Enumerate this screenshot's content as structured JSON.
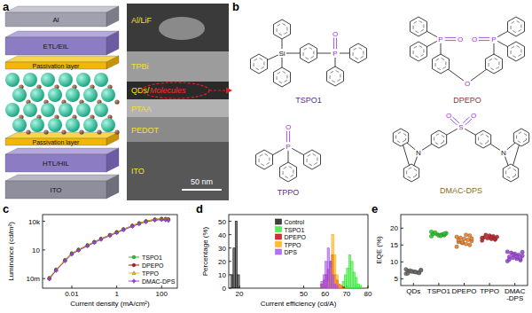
{
  "panel_labels": [
    "a",
    "b",
    "c",
    "d",
    "e"
  ],
  "device_layers": [
    "Al",
    "ETL/EIL",
    "Passivation layer",
    "Passivation layer",
    "HTL/HIL",
    "ITO"
  ],
  "tem": {
    "labels": [
      "Al/LiF",
      "TPBi",
      "QDs/",
      "PTAA",
      "PEDOT",
      "ITO"
    ],
    "highlight": "Molecules",
    "scale_bar": "50 nm"
  },
  "molecules": [
    {
      "name": "TSPO1",
      "atoms": [
        "Si",
        "P",
        "O"
      ]
    },
    {
      "name": "DPEPO",
      "atoms": [
        "P",
        "O",
        "P",
        "O",
        "O"
      ]
    },
    {
      "name": "TPPO",
      "atoms": [
        "P",
        "O"
      ]
    },
    {
      "name": "DMAC-DPS",
      "atoms": [
        "N",
        "S",
        "O",
        "O",
        "N"
      ]
    }
  ],
  "chart_data": [
    {
      "type": "line",
      "x_label": "Current density (mA/cm²)",
      "y_label": "Luminance (cd/m²)",
      "log": true,
      "grid": false,
      "legend": "lower right",
      "x": [
        0.001,
        0.002,
        0.005,
        0.01,
        0.02,
        0.05,
        0.1,
        0.2,
        0.5,
        1,
        2,
        5,
        10,
        20,
        50,
        100,
        150,
        200
      ],
      "xlim": [
        0.0005,
        500
      ],
      "xticks": [
        0.01,
        1,
        100
      ],
      "ylim": [
        0.001,
        50000
      ],
      "yticks": [
        {
          "value": 0.01,
          "label": "10m"
        },
        10,
        {
          "value": 10000,
          "label": "10k"
        }
      ],
      "series": [
        {
          "name": "TSPO1",
          "color": "#22c022",
          "marker": "circle",
          "values": [
            0.012,
            0.09,
            0.9,
            4.5,
            11,
            32,
            70,
            150,
            380,
            760,
            1500,
            3600,
            6500,
            10500,
            16000,
            18500,
            18000,
            16500
          ]
        },
        {
          "name": "DPEPO",
          "color": "#b01818",
          "marker": "circle",
          "values": [
            0.01,
            0.08,
            0.8,
            4,
            10,
            29,
            64,
            140,
            350,
            700,
            1400,
            3300,
            6000,
            9800,
            15000,
            17500,
            17000,
            15500
          ]
        },
        {
          "name": "TPPO",
          "color": "#e8c000",
          "marker": "triangle",
          "values": [
            0.011,
            0.085,
            0.85,
            4.2,
            10.5,
            30,
            67,
            145,
            365,
            730,
            1450,
            3450,
            6200,
            10000,
            15500,
            18000,
            17500,
            16000
          ]
        },
        {
          "name": "DMAC-DPS",
          "color": "#9b40d8",
          "marker": "diamond",
          "values": [
            0.009,
            0.07,
            0.7,
            3.6,
            9,
            26,
            58,
            125,
            310,
            620,
            1250,
            2900,
            5300,
            8700,
            13000,
            14500,
            13500,
            12000
          ]
        }
      ]
    },
    {
      "type": "histogram",
      "x_label": "Current efficiency (cd/A)",
      "y_label": "Percentage (%)",
      "grid": false,
      "legend": "upper center",
      "xlim": [
        15,
        80
      ],
      "xticks": [
        20,
        50,
        60,
        70,
        80
      ],
      "ylim": [
        0,
        55
      ],
      "yticks": [
        0,
        10,
        20,
        30,
        40,
        50
      ],
      "series": [
        {
          "name": "Control",
          "color": "#111111",
          "bins": [
            16,
            17,
            18,
            19,
            20
          ],
          "values": [
            10,
            30,
            50,
            10
          ]
        },
        {
          "name": "TSPO1",
          "color": "#2ee82e",
          "bins": [
            68,
            69,
            70,
            71,
            72,
            73,
            74,
            75,
            76,
            77
          ],
          "values": [
            5,
            10,
            15,
            25,
            20,
            12,
            8,
            3,
            2
          ]
        },
        {
          "name": "DPEPO",
          "color": "#c00000",
          "bins": [
            58,
            59,
            60,
            61,
            62,
            63,
            64,
            65,
            66,
            67,
            68,
            69
          ],
          "values": [
            3,
            6,
            10,
            14,
            20,
            25,
            10,
            6,
            3,
            2,
            1
          ]
        },
        {
          "name": "TPPO",
          "color": "#ffaa00",
          "bins": [
            61,
            62,
            63,
            64,
            65,
            66,
            67,
            68
          ],
          "values": [
            5,
            15,
            40,
            25,
            10,
            3,
            2
          ]
        },
        {
          "name": "DPS",
          "color": "#a050f0",
          "bins": [
            58,
            59,
            60,
            61,
            62,
            63,
            64,
            65,
            66
          ],
          "values": [
            5,
            10,
            20,
            30,
            20,
            10,
            3,
            2
          ]
        }
      ]
    },
    {
      "type": "scatter",
      "y_label": "EQE (%)",
      "grid": false,
      "categories": [
        "QDs",
        "TSPO1",
        "DPEPO",
        "TPPO",
        "DMAC-DPS"
      ],
      "colors": [
        "#6a6a6a",
        "#22cc22",
        "#f08020",
        "#c0202a",
        "#a040e0"
      ],
      "ylim": [
        3,
        24
      ],
      "yticks": [
        5,
        10,
        15,
        20
      ],
      "values": [
        [
          6.5,
          6.8,
          7.0,
          7.2,
          7.3,
          7.5,
          6.9,
          7.1,
          7.4,
          7.8,
          6.7,
          7.0,
          7.2,
          6.6,
          7.6
        ],
        [
          17.6,
          17.9,
          18.0,
          18.2,
          18.3,
          18.5,
          18.1,
          17.8,
          18.7,
          18.9,
          18.4,
          17.7
        ],
        [
          14.5,
          15.0,
          15.3,
          15.6,
          15.9,
          16.2,
          16.5,
          16.8,
          17.1,
          17.4,
          17.8,
          18.0,
          15.8,
          16.4,
          16.9
        ],
        [
          16.3,
          16.6,
          16.8,
          17.0,
          17.2,
          17.4,
          17.6,
          17.8,
          18.0,
          17.1,
          16.9,
          17.3
        ],
        [
          10.2,
          10.5,
          10.9,
          11.2,
          11.5,
          11.8,
          12.1,
          12.4,
          12.7,
          13.0,
          11.0,
          11.6,
          12.2,
          10.7,
          12.9
        ]
      ]
    }
  ]
}
